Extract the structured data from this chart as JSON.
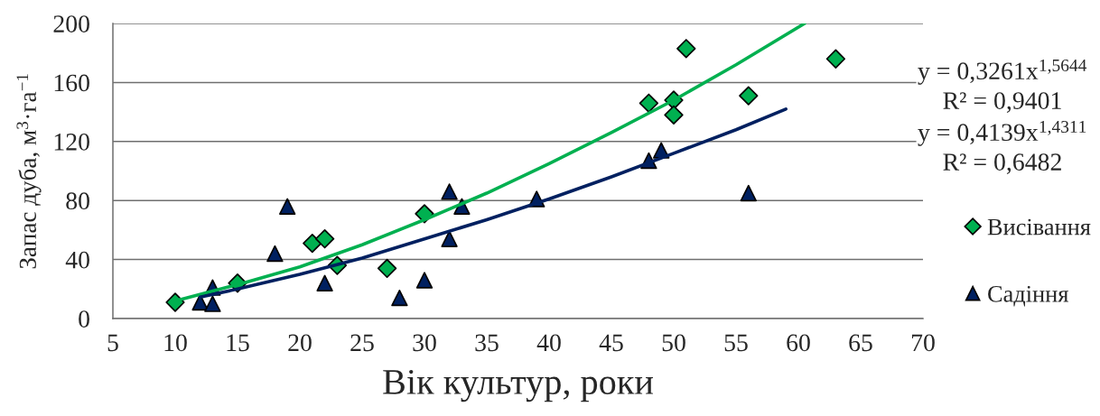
{
  "chart_data": {
    "type": "scatter",
    "xlabel": "Вік культур, роки",
    "ylabel": "Запас дуба, м$^{3}$·га$^{−1}$",
    "xlim": [
      5,
      70
    ],
    "xticks": [
      5,
      10,
      15,
      20,
      25,
      30,
      35,
      40,
      45,
      50,
      55,
      60,
      65,
      70
    ],
    "ylim": [
      0,
      200
    ],
    "yticks": [
      0,
      40,
      80,
      120,
      160,
      200
    ],
    "grid": "y",
    "legend": "right",
    "annotations": [
      "y = 0,3261x$^{1,5644}$",
      "R² = 0,9401",
      "y = 0,4139x$^{1,4311}$",
      "R² = 0,6482"
    ],
    "series": [
      {
        "name": "Висівання",
        "marker": "diamond",
        "color": "#00b050",
        "x": [
          10,
          15,
          21,
          22,
          23,
          27,
          30,
          48,
          50,
          50,
          51,
          56,
          63
        ],
        "values": [
          11,
          24,
          51,
          54,
          36,
          34,
          71,
          146,
          148,
          138,
          183,
          151,
          176
        ]
      },
      {
        "name": "Садіння",
        "marker": "triangle",
        "color": "#002060",
        "x": [
          12,
          13,
          13,
          18,
          19,
          22,
          28,
          30,
          32,
          32,
          33,
          39,
          48,
          49,
          56
        ],
        "values": [
          11,
          21,
          10,
          44,
          76,
          24,
          14,
          26,
          86,
          54,
          76,
          81,
          107,
          114,
          85
        ]
      },
      {
        "type": "line",
        "color": "#00b050",
        "line_style": "solid",
        "x": [
          10,
          15,
          20,
          25,
          30,
          35,
          40,
          45,
          50,
          55,
          60.5
        ],
        "values": [
          12,
          23,
          35,
          50,
          67,
          85,
          105,
          126,
          148,
          172,
          200
        ]
      },
      {
        "type": "line",
        "color": "#002060",
        "line_style": "solid",
        "x": [
          12,
          15,
          20,
          25,
          30,
          35,
          40,
          45,
          50,
          55,
          59
        ],
        "values": [
          14.5,
          20,
          30,
          41,
          54,
          67,
          81,
          96,
          112,
          128,
          142
        ]
      }
    ]
  }
}
